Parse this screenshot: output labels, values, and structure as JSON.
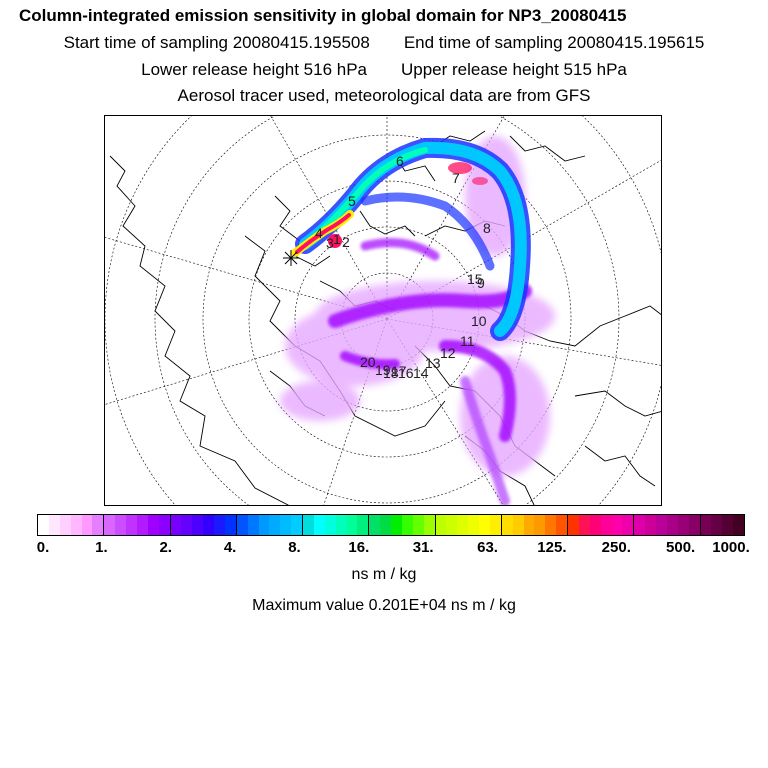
{
  "header": {
    "title": "Column-integrated emission sensitivity in global domain for NP3_20080415",
    "start_time": "Start time of sampling 20080415.195508",
    "end_time": "End time of sampling 20080415.195615",
    "lower_release": "Lower release height  516 hPa",
    "upper_release": "Upper release height  515 hPa",
    "tracer_info": "Aerosol tracer used, meteorological data are from GFS"
  },
  "map": {
    "projection": "polar-stereographic-north",
    "day_labels": [
      "1",
      "2",
      "3",
      "4",
      "5",
      "6",
      "7",
      "8",
      "9",
      "10",
      "11",
      "12",
      "13",
      "14",
      "15",
      "16",
      "17",
      "18",
      "19",
      "20"
    ],
    "colors": {
      "land_outline": "#000000",
      "graticule": "#000000",
      "plume_low": "#e6a8ff",
      "plume_mid": "#a000ff",
      "plume_core": "#00e8e8",
      "plume_high": "#ff1060"
    }
  },
  "legend": {
    "tick_labels": [
      "0.",
      "1.",
      "2.",
      "4.",
      "8.",
      "16.",
      "31.",
      "63.",
      "125.",
      "250.",
      "500.",
      "1000."
    ],
    "colors": [
      "#ffffff",
      "#ffe8ff",
      "#ffd0ff",
      "#ffb8ff",
      "#ff99ff",
      "#e67fff",
      "#d966ff",
      "#cc4dff",
      "#c033ff",
      "#b31aff",
      "#a000ff",
      "#8c00ff",
      "#7800ff",
      "#6600ff",
      "#4d00ff",
      "#3300ff",
      "#1a1aff",
      "#0033ff",
      "#0055ff",
      "#0077ff",
      "#0099ff",
      "#00aaff",
      "#00bbff",
      "#00ccff",
      "#00dddd",
      "#00ffff",
      "#00ffdd",
      "#00ffbb",
      "#00ff99",
      "#00f080",
      "#00e066",
      "#00dd44",
      "#00ee00",
      "#33ff00",
      "#66ff00",
      "#99ff00",
      "#bbff00",
      "#ccff00",
      "#ddff00",
      "#eeff00",
      "#ffff00",
      "#ffee00",
      "#ffdd00",
      "#ffcc00",
      "#ffaa00",
      "#ff9900",
      "#ff7700",
      "#ff5500",
      "#ff3300",
      "#ff1155",
      "#ff0077",
      "#ff0099",
      "#ff00aa",
      "#ee00aa",
      "#dd00aa",
      "#cc0099",
      "#bb0099",
      "#aa0088",
      "#990077",
      "#880066",
      "#770055",
      "#660044",
      "#550033",
      "#440022"
    ],
    "unit": "ns m / kg",
    "max_value": "Maximum value  0.201E+04 ns m / kg"
  }
}
